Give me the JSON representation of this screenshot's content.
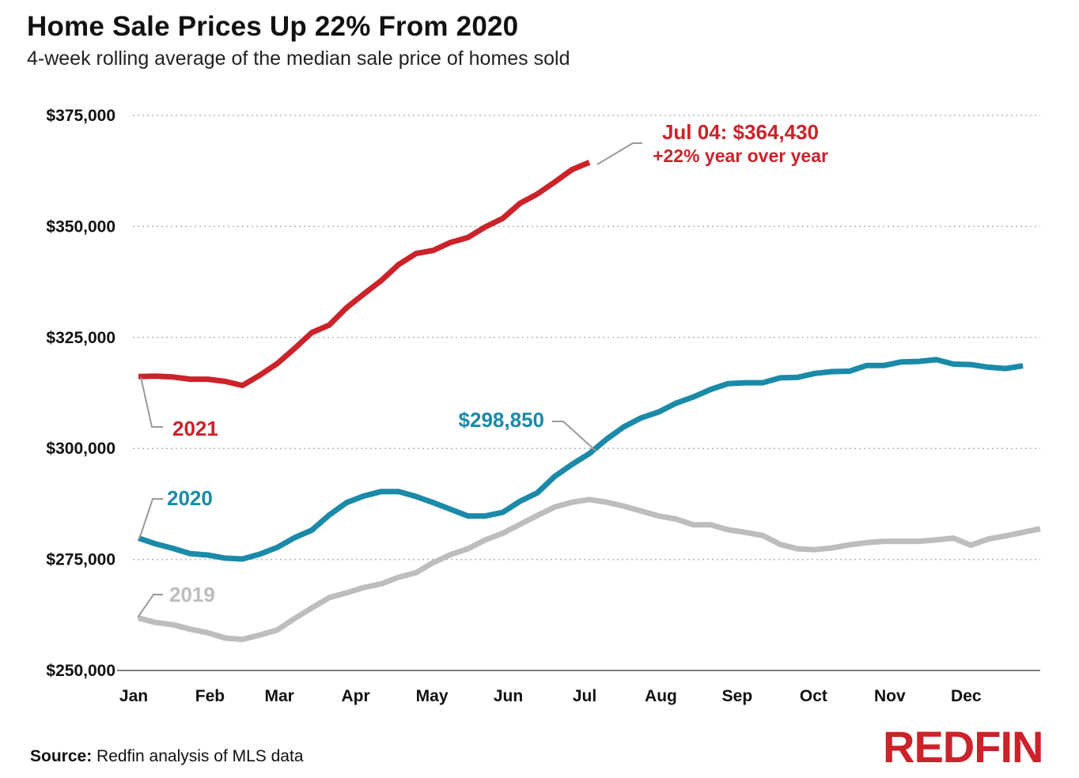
{
  "header": {
    "title": "Home Sale Prices Up 22% From 2020",
    "subtitle": "4-week rolling average of the median sale price of homes sold"
  },
  "footer": {
    "source_label": "Source:",
    "source_text": " Redfin analysis of MLS data",
    "logo_text": "REDFIN"
  },
  "colors": {
    "s2021": "#cc2229",
    "s2020": "#1a8aa8",
    "s2019": "#bdbdbd",
    "grid": "#b5b5b5"
  },
  "chart_data": {
    "type": "line",
    "title": "Home Sale Prices Up 22% From 2020",
    "subtitle": "4-week rolling average of the median sale price of homes sold",
    "xlabel": "",
    "ylabel": "",
    "ylim": [
      250000,
      375000
    ],
    "yticks": [
      250000,
      275000,
      300000,
      325000,
      350000,
      375000
    ],
    "ytick_labels": [
      "$250,000",
      "$275,000",
      "$300,000",
      "$325,000",
      "$350,000",
      "$375,000"
    ],
    "xlim": [
      0,
      52
    ],
    "month_ticks": [
      {
        "label": "Jan",
        "week": 0
      },
      {
        "label": "Feb",
        "week": 4.4
      },
      {
        "label": "Mar",
        "week": 8.4
      },
      {
        "label": "Apr",
        "week": 12.8
      },
      {
        "label": "May",
        "week": 17.2
      },
      {
        "label": "Jun",
        "week": 21.6
      },
      {
        "label": "Jul",
        "week": 26
      },
      {
        "label": "Aug",
        "week": 30.4
      },
      {
        "label": "Sep",
        "week": 34.8
      },
      {
        "label": "Oct",
        "week": 39.2
      },
      {
        "label": "Nov",
        "week": 43.6
      },
      {
        "label": "Dec",
        "week": 48
      }
    ],
    "grid": true,
    "series": [
      {
        "name": "2021",
        "color_key": "s2021",
        "values": [
          316200,
          316300,
          316100,
          315600,
          315600,
          315100,
          314200,
          316500,
          319100,
          322500,
          326100,
          327800,
          331700,
          334800,
          337800,
          341400,
          343900,
          344600,
          346400,
          347500,
          349900,
          351800,
          355200,
          357300,
          360000,
          362800,
          364430
        ]
      },
      {
        "name": "2020",
        "color_key": "s2020",
        "values": [
          279800,
          278500,
          277500,
          276300,
          276000,
          275300,
          275100,
          276200,
          277700,
          279900,
          281600,
          285000,
          287800,
          289300,
          290300,
          290300,
          289200,
          287800,
          286300,
          284800,
          284800,
          285600,
          288100,
          290000,
          293700,
          296400,
          298850,
          302100,
          304900,
          306900,
          308200,
          310200,
          311600,
          313300,
          314600,
          314800,
          314800,
          315900,
          316000,
          316900,
          317300,
          317400,
          318700,
          318700,
          319500,
          319600,
          320000,
          319000,
          318900,
          318300,
          318000,
          318600
        ]
      },
      {
        "name": "2019",
        "color_key": "s2019",
        "values": [
          261800,
          260800,
          260300,
          259300,
          258500,
          257300,
          257000,
          258000,
          259100,
          261700,
          264100,
          266400,
          267500,
          268700,
          269500,
          271000,
          272000,
          274300,
          276100,
          277400,
          279400,
          280900,
          282900,
          284900,
          286800,
          287900,
          288500,
          287900,
          287000,
          285900,
          284800,
          284100,
          282800,
          282800,
          281700,
          281100,
          280400,
          278400,
          277400,
          277200,
          277600,
          278300,
          278800,
          279100,
          279100,
          279100,
          279400,
          279800,
          278200,
          279600,
          280300,
          281100,
          281900
        ]
      }
    ],
    "annotations": [
      {
        "label_line1": "Jul 04: $364,430",
        "label_line2": "+22% year over year",
        "series": "2021"
      },
      {
        "label": "$298,850",
        "series": "2020"
      },
      {
        "label": "2021",
        "series": "2021"
      },
      {
        "label": "2020",
        "series": "2020"
      },
      {
        "label": "2019",
        "series": "2019"
      }
    ]
  }
}
